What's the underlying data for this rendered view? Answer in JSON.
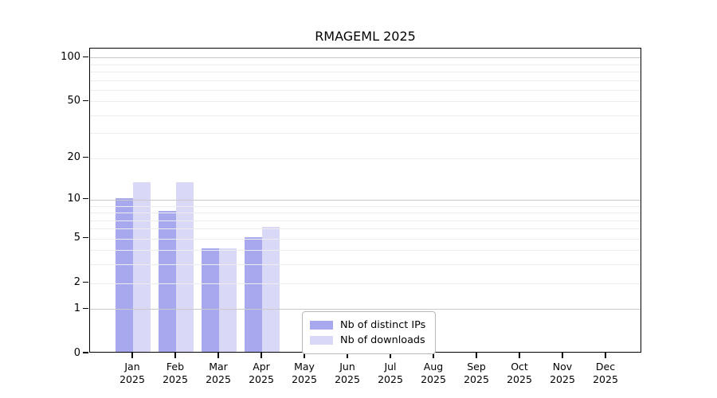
{
  "chart_data": {
    "type": "bar",
    "title": "RMAGEML 2025",
    "categories": [
      "Jan 2025",
      "Feb 2025",
      "Mar 2025",
      "Apr 2025",
      "May 2025",
      "Jun 2025",
      "Jul 2025",
      "Aug 2025",
      "Sep 2025",
      "Oct 2025",
      "Nov 2025",
      "Dec 2025"
    ],
    "categories_month": [
      "Jan",
      "Feb",
      "Mar",
      "Apr",
      "May",
      "Jun",
      "Jul",
      "Aug",
      "Sep",
      "Oct",
      "Nov",
      "Dec"
    ],
    "categories_year": "2025",
    "series": [
      {
        "name": "Nb of distinct IPs",
        "color": "#a8a8ee",
        "values": [
          10,
          8,
          4,
          5,
          0,
          0,
          0,
          0,
          0,
          0,
          0,
          0
        ]
      },
      {
        "name": "Nb of downloads",
        "color": "#d9d9f7",
        "values": [
          13,
          13,
          4,
          6,
          0,
          0,
          0,
          0,
          0,
          0,
          0,
          0
        ]
      }
    ],
    "yscale": "log1p",
    "ylim": [
      0,
      115
    ],
    "y_tick_values": [
      0,
      1,
      2,
      5,
      10,
      20,
      50,
      100
    ],
    "y_grid_minor": [
      2,
      3,
      4,
      5,
      6,
      7,
      8,
      9,
      20,
      30,
      40,
      50,
      60,
      70,
      80,
      90
    ],
    "y_grid_major": [
      1,
      10,
      100
    ],
    "grid": true,
    "legend_position": "inside-bottom-center",
    "colors": {
      "grid_minor": "#ededed",
      "grid_major": "#c9c9c9",
      "axis": "#000000",
      "legend_border": "#b9b9b9",
      "text": "#000000"
    }
  }
}
